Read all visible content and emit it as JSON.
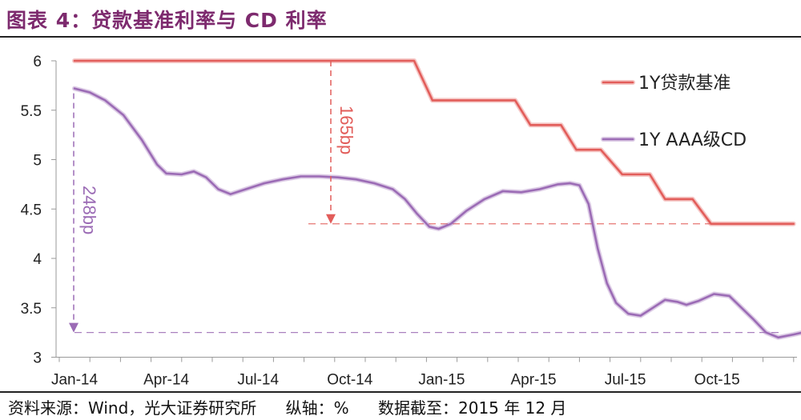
{
  "title": "图表 4：贷款基准利率与 CD 利率",
  "footer": {
    "source": "资料来源：Wind，光大证券研究所",
    "yaxis": "纵轴：%",
    "date": "数据截至：2015 年 12 月"
  },
  "colors": {
    "benchmark": "#e25d5a",
    "cd": "#9b6bb5",
    "title": "#7d2a6e"
  },
  "chart_data": {
    "type": "line",
    "ylim": [
      3,
      6
    ],
    "y_ticks": [
      "6",
      "5.5",
      "5",
      "4.5",
      "4",
      "3.5",
      "3"
    ],
    "x_ticks": [
      "Jan-14",
      "Apr-14",
      "Jul-14",
      "Oct-14",
      "Jan-15",
      "Apr-15",
      "Jul-15",
      "Oct-15"
    ],
    "legend": [
      "1Y贷款基准",
      "1Y AAA级CD"
    ],
    "series": [
      {
        "name": "1Y贷款基准",
        "points": [
          [
            0,
            6.0
          ],
          [
            11.1,
            6.0
          ],
          [
            11.7,
            5.6
          ],
          [
            14.4,
            5.6
          ],
          [
            14.9,
            5.35
          ],
          [
            15.9,
            5.35
          ],
          [
            16.4,
            5.1
          ],
          [
            17.2,
            5.1
          ],
          [
            17.9,
            4.85
          ],
          [
            18.8,
            4.85
          ],
          [
            19.3,
            4.6
          ],
          [
            20.2,
            4.6
          ],
          [
            20.8,
            4.35
          ],
          [
            23.5,
            4.35
          ]
        ]
      },
      {
        "name": "1Y AAA级CD",
        "points": [
          [
            0,
            5.72
          ],
          [
            0.5,
            5.68
          ],
          [
            1.0,
            5.6
          ],
          [
            1.6,
            5.45
          ],
          [
            2.2,
            5.2
          ],
          [
            2.7,
            4.95
          ],
          [
            3.0,
            4.86
          ],
          [
            3.5,
            4.85
          ],
          [
            3.9,
            4.88
          ],
          [
            4.3,
            4.82
          ],
          [
            4.7,
            4.7
          ],
          [
            5.1,
            4.65
          ],
          [
            5.6,
            4.7
          ],
          [
            6.2,
            4.76
          ],
          [
            6.8,
            4.8
          ],
          [
            7.4,
            4.83
          ],
          [
            8.0,
            4.83
          ],
          [
            8.6,
            4.82
          ],
          [
            9.2,
            4.8
          ],
          [
            9.8,
            4.76
          ],
          [
            10.4,
            4.7
          ],
          [
            10.8,
            4.6
          ],
          [
            11.2,
            4.45
          ],
          [
            11.6,
            4.32
          ],
          [
            11.9,
            4.3
          ],
          [
            12.3,
            4.35
          ],
          [
            12.8,
            4.48
          ],
          [
            13.4,
            4.6
          ],
          [
            14.0,
            4.68
          ],
          [
            14.6,
            4.67
          ],
          [
            15.2,
            4.7
          ],
          [
            15.8,
            4.75
          ],
          [
            16.2,
            4.76
          ],
          [
            16.5,
            4.74
          ],
          [
            16.8,
            4.55
          ],
          [
            17.1,
            4.1
          ],
          [
            17.4,
            3.75
          ],
          [
            17.7,
            3.55
          ],
          [
            18.1,
            3.44
          ],
          [
            18.5,
            3.42
          ],
          [
            18.9,
            3.5
          ],
          [
            19.3,
            3.58
          ],
          [
            19.7,
            3.56
          ],
          [
            20.0,
            3.53
          ],
          [
            20.4,
            3.57
          ],
          [
            20.9,
            3.64
          ],
          [
            21.4,
            3.62
          ],
          [
            21.8,
            3.5
          ],
          [
            22.2,
            3.38
          ],
          [
            22.6,
            3.25
          ],
          [
            23.0,
            3.2
          ],
          [
            23.5,
            3.23
          ],
          [
            23.8,
            3.25
          ]
        ]
      }
    ],
    "annotations": [
      "165bp",
      "248bp"
    ]
  }
}
